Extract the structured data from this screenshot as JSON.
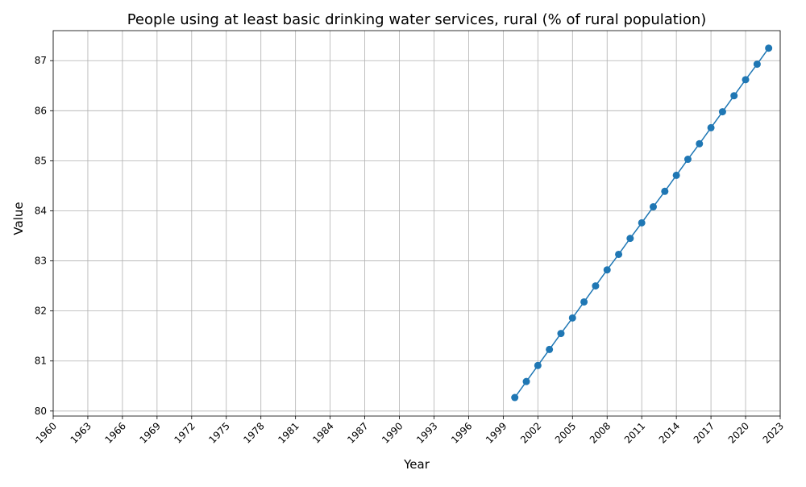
{
  "chart_data": {
    "type": "line",
    "title": "People using at least basic drinking water services, rural (% of rural population)",
    "xlabel": "Year",
    "ylabel": "Value",
    "xlim": [
      1960,
      2023
    ],
    "ylim": [
      79.9,
      87.6
    ],
    "x_ticks": [
      1960,
      1963,
      1966,
      1969,
      1972,
      1975,
      1978,
      1981,
      1984,
      1987,
      1990,
      1993,
      1996,
      1999,
      2002,
      2005,
      2008,
      2011,
      2014,
      2017,
      2020,
      2023
    ],
    "y_ticks": [
      80,
      81,
      82,
      83,
      84,
      85,
      86,
      87
    ],
    "grid": true,
    "color": "#1f77b4",
    "series": [
      {
        "x": [
          2000,
          2001,
          2002,
          2003,
          2004,
          2005,
          2006,
          2007,
          2008,
          2009,
          2010,
          2011,
          2012,
          2013,
          2014,
          2015,
          2016,
          2017,
          2018,
          2019,
          2020,
          2021,
          2022
        ],
        "values": [
          80.27,
          80.59,
          80.91,
          81.23,
          81.55,
          81.86,
          82.18,
          82.5,
          82.82,
          83.13,
          83.45,
          83.76,
          84.08,
          84.39,
          84.71,
          85.03,
          85.34,
          85.66,
          85.98,
          86.3,
          86.62,
          86.93,
          87.25
        ]
      }
    ]
  }
}
